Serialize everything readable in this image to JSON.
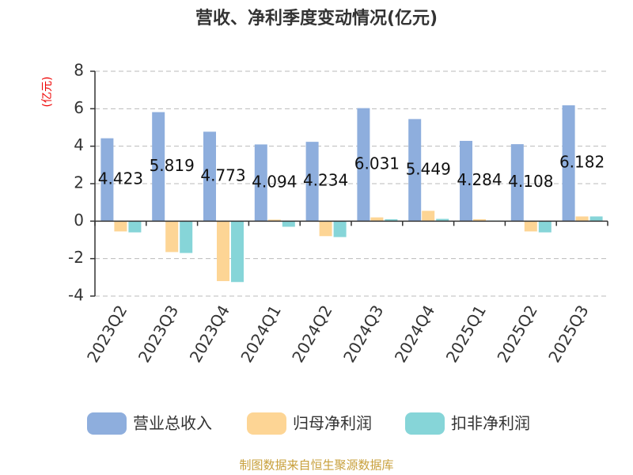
{
  "chart_data": {
    "type": "bar",
    "title": "营收、净利季度变动情况(亿元)",
    "y_label": "(亿元)",
    "source": "制图数据来自恒生聚源数据库",
    "categories": [
      "2023Q2",
      "2023Q3",
      "2023Q4",
      "2024Q1",
      "2024Q2",
      "2024Q3",
      "2024Q4",
      "2025Q1",
      "2025Q2",
      "2025Q3"
    ],
    "series": [
      {
        "name": "营业总收入",
        "color": "#8eaedd",
        "values": [
          4.423,
          5.819,
          4.773,
          4.094,
          4.234,
          6.031,
          5.449,
          4.284,
          4.108,
          6.182
        ]
      },
      {
        "name": "归母净利润",
        "color": "#fdd595",
        "values": [
          -0.55,
          -1.65,
          -3.2,
          0.08,
          -0.8,
          0.2,
          0.55,
          0.1,
          -0.55,
          0.25
        ]
      },
      {
        "name": "扣非净利润",
        "color": "#86d5d8",
        "values": [
          -0.6,
          -1.7,
          -3.25,
          -0.3,
          -0.85,
          0.1,
          0.12,
          0.03,
          -0.6,
          0.25
        ]
      }
    ],
    "data_labels_series": 0,
    "ylim": [
      -4,
      8
    ],
    "yticks": [
      -4,
      -2,
      0,
      2,
      4,
      6,
      8
    ],
    "grid": true
  }
}
